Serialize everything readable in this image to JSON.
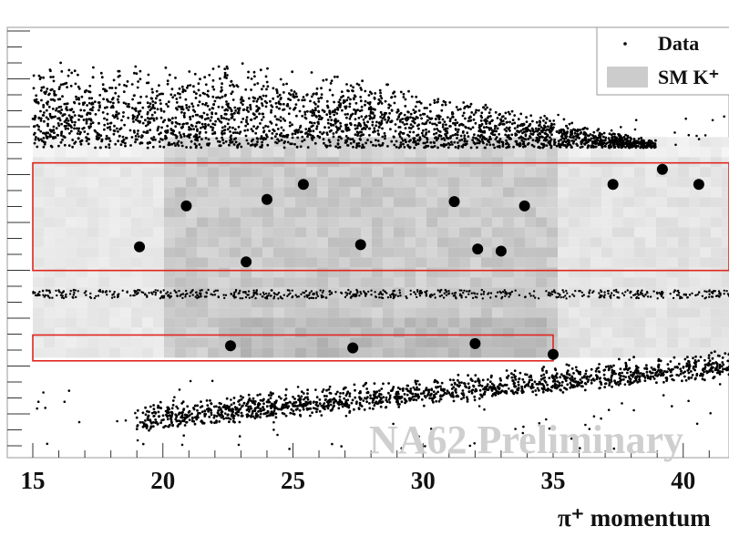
{
  "chart_data": {
    "type": "scatter",
    "title": "",
    "xlabel": "π⁺ momentum",
    "ylabel": "",
    "xlim": [
      15,
      42
    ],
    "ylim": [
      0,
      1
    ],
    "x_ticks": [
      15,
      20,
      25,
      30,
      35,
      40
    ],
    "x_tick_labels": [
      "15",
      "20",
      "25",
      "30",
      "35",
      "40"
    ],
    "watermark": "NA62 Preliminary",
    "legend": {
      "placement": "top-right",
      "entries": [
        {
          "label": "Data",
          "marker": "point",
          "color": "#000000"
        },
        {
          "label": "SM K⁺",
          "marker": "box",
          "color": "#cccccc"
        }
      ]
    },
    "colors": {
      "signal_region": "#e0261e",
      "data": "#000000",
      "sm_fill": "#cccccc"
    },
    "signal_regions": [
      {
        "name": "region 1",
        "x": [
          15,
          42
        ],
        "y": [
          0.435,
          0.685
        ]
      },
      {
        "name": "region 2",
        "x": [
          15,
          35
        ],
        "y": [
          0.225,
          0.285
        ]
      }
    ],
    "series": [
      {
        "name": "Data",
        "description_of_bands": "dense data populations above, between and below the regions",
        "signal_candidates": [
          {
            "x": 19.1,
            "y": 0.49
          },
          {
            "x": 20.9,
            "y": 0.585
          },
          {
            "x": 23.2,
            "y": 0.455
          },
          {
            "x": 24.0,
            "y": 0.6
          },
          {
            "x": 25.4,
            "y": 0.635
          },
          {
            "x": 27.6,
            "y": 0.495
          },
          {
            "x": 31.2,
            "y": 0.595
          },
          {
            "x": 32.1,
            "y": 0.485
          },
          {
            "x": 33.0,
            "y": 0.48
          },
          {
            "x": 33.9,
            "y": 0.585
          },
          {
            "x": 37.3,
            "y": 0.635
          },
          {
            "x": 39.2,
            "y": 0.67
          },
          {
            "x": 40.6,
            "y": 0.635
          },
          {
            "x": 22.6,
            "y": 0.26
          },
          {
            "x": 27.3,
            "y": 0.255
          },
          {
            "x": 32.0,
            "y": 0.265
          },
          {
            "x": 35.0,
            "y": 0.24
          }
        ]
      }
    ]
  }
}
